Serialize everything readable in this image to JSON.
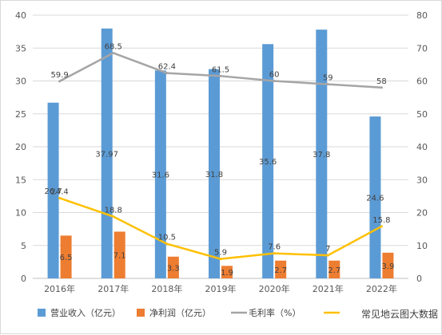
{
  "chart_data": {
    "type": "bar",
    "categories": [
      "2016年",
      "2017年",
      "2018年",
      "2019年",
      "2020年",
      "2021年",
      "2022年"
    ],
    "series": [
      {
        "name": "营业收入（亿元）",
        "type": "bar",
        "axis": "left",
        "color": "#5b9bd5",
        "values": [
          26.7,
          37.97,
          31.6,
          31.8,
          35.6,
          37.8,
          24.6
        ]
      },
      {
        "name": "净利润（亿元）",
        "type": "bar",
        "axis": "left",
        "color": "#ed7d31",
        "values": [
          6.5,
          7.1,
          3.3,
          1.9,
          2.7,
          2.7,
          3.9
        ]
      },
      {
        "name": "毛利率（%）",
        "type": "line",
        "axis": "right",
        "color": "#a5a5a5",
        "values": [
          59.9,
          68.5,
          62.4,
          61.5,
          60,
          59,
          58
        ]
      },
      {
        "name": "",
        "type": "line",
        "axis": "right",
        "color": "#ffc000",
        "values": [
          24.4,
          18.8,
          10.5,
          5.9,
          7.6,
          7,
          15.8
        ]
      }
    ],
    "y_left": {
      "ticks": [
        "0",
        "5",
        "10",
        "15",
        "20",
        "25",
        "30",
        "35",
        "40"
      ],
      "ylim": [
        0,
        40
      ]
    },
    "y_right": {
      "ticks": [
        "0",
        "10",
        "20",
        "30",
        "40",
        "50",
        "60",
        "70",
        "80"
      ],
      "ylim": [
        0,
        80
      ]
    },
    "grid": true,
    "legend_position": "bottom",
    "watermark": "常见地云图大数据"
  }
}
